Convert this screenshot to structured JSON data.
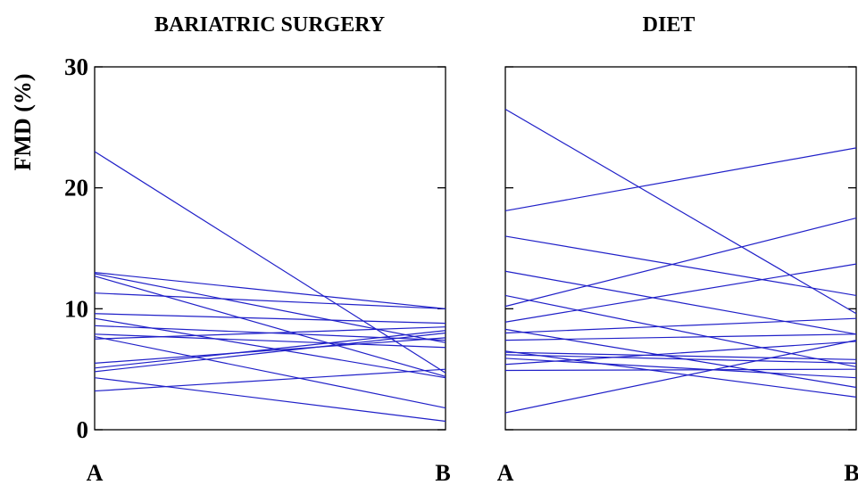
{
  "chart_data": [
    {
      "type": "line",
      "title": "BARIATRIC SURGERY",
      "ylabel": "FMD (%)",
      "xlabel": "",
      "categories": [
        "A",
        "B"
      ],
      "ylim": [
        0,
        30
      ],
      "yticks": [
        0,
        10,
        20,
        30
      ],
      "grid": false,
      "series": [
        {
          "values": [
            23.0,
            4.7
          ]
        },
        {
          "values": [
            13.0,
            10.0
          ]
        },
        {
          "values": [
            12.9,
            7.2
          ]
        },
        {
          "values": [
            12.7,
            4.4
          ]
        },
        {
          "values": [
            11.3,
            10.0
          ]
        },
        {
          "values": [
            9.6,
            8.8
          ]
        },
        {
          "values": [
            9.2,
            4.3
          ]
        },
        {
          "values": [
            8.6,
            7.4
          ]
        },
        {
          "values": [
            7.9,
            6.8
          ]
        },
        {
          "values": [
            7.7,
            1.8
          ]
        },
        {
          "values": [
            7.5,
            8.5
          ]
        },
        {
          "values": [
            5.5,
            7.6
          ]
        },
        {
          "values": [
            5.1,
            8.2
          ]
        },
        {
          "values": [
            4.8,
            8.0
          ]
        },
        {
          "values": [
            4.3,
            0.7
          ]
        },
        {
          "values": [
            3.2,
            5.0
          ]
        }
      ]
    },
    {
      "type": "line",
      "title": "DIET",
      "ylabel": "",
      "xlabel": "",
      "categories": [
        "A",
        "B"
      ],
      "ylim": [
        0,
        30
      ],
      "yticks": [
        0,
        10,
        20,
        30
      ],
      "grid": false,
      "series": [
        {
          "values": [
            26.5,
            9.6
          ]
        },
        {
          "values": [
            18.1,
            23.3
          ]
        },
        {
          "values": [
            16.0,
            11.1
          ]
        },
        {
          "values": [
            13.1,
            7.9
          ]
        },
        {
          "values": [
            11.1,
            5.2
          ]
        },
        {
          "values": [
            10.2,
            17.5
          ]
        },
        {
          "values": [
            8.9,
            13.7
          ]
        },
        {
          "values": [
            8.0,
            9.2
          ]
        },
        {
          "values": [
            7.4,
            7.9
          ]
        },
        {
          "values": [
            8.3,
            3.5
          ]
        },
        {
          "values": [
            6.5,
            2.7
          ]
        },
        {
          "values": [
            6.4,
            5.8
          ]
        },
        {
          "values": [
            6.2,
            5.5
          ]
        },
        {
          "values": [
            5.9,
            4.3
          ]
        },
        {
          "values": [
            5.4,
            7.3
          ]
        },
        {
          "values": [
            4.9,
            5.0
          ]
        },
        {
          "values": [
            1.4,
            7.4
          ]
        }
      ]
    }
  ]
}
